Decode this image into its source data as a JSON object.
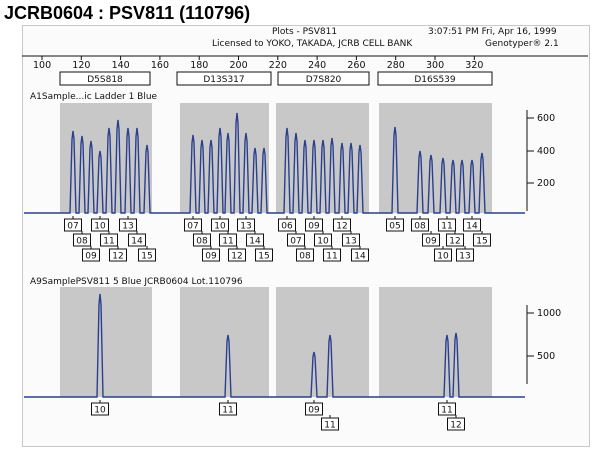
{
  "page_title": "JCRB0604 : PSV811 (110796)",
  "header": {
    "plots_title": "Plots - PSV811",
    "license": "Licensed to YOKO, TAKADA, JCRB CELL BANK",
    "datetime": "3:07:51 PM  Fri,  Apr 16, 1999",
    "app": "Genotyper® 2.1"
  },
  "axis": {
    "bp_ticks": [
      "100",
      "120",
      "140",
      "160",
      "180",
      "200",
      "220",
      "240",
      "260",
      "280",
      "300",
      "320"
    ],
    "top_y_ticks": [
      "600",
      "400",
      "200"
    ],
    "bottom_y_ticks": [
      "1000",
      "500"
    ]
  },
  "loci": [
    {
      "name": "D5S818"
    },
    {
      "name": "D13S317"
    },
    {
      "name": "D7S820"
    },
    {
      "name": "D16S539"
    }
  ],
  "panels": {
    "ladder_label": "A1Sample...ic Ladder  1 Blue",
    "sample_label": "A9SamplePSV811       5 Blue     JCRB0604  Lot.110796"
  },
  "ladder_alleles": [
    {
      "locus": "D5S818",
      "row1": [
        "07",
        "10",
        "13"
      ],
      "row2": [
        "08",
        "11",
        "14"
      ],
      "row3": [
        "09",
        "12",
        "15"
      ]
    },
    {
      "locus": "D13S317",
      "row1": [
        "07",
        "10",
        "13"
      ],
      "row2": [
        "08",
        "11",
        "14"
      ],
      "row3": [
        "09",
        "12",
        "15"
      ]
    },
    {
      "locus": "D7S820",
      "row1": [
        "06",
        "09",
        "12"
      ],
      "row2": [
        "07",
        "10",
        "13"
      ],
      "row3": [
        "08",
        "11",
        "14"
      ]
    },
    {
      "locus": "D16S539",
      "row1": [
        "05",
        "08",
        "11",
        "14"
      ],
      "row2": [
        "09",
        "12",
        "15"
      ],
      "row3": [
        "10",
        "13"
      ]
    }
  ],
  "sample_calls": [
    {
      "locus": "D5S818",
      "alleles": [
        "10"
      ]
    },
    {
      "locus": "D13S317",
      "alleles": [
        "11"
      ]
    },
    {
      "locus": "D7S820",
      "alleles": [
        "09",
        "11"
      ]
    },
    {
      "locus": "D16S539",
      "alleles": [
        "11",
        "12"
      ]
    }
  ],
  "colors": {
    "trace": "#2b3f8f",
    "bin_shade": "#c8c8c8",
    "frame": "#fafbfa"
  }
}
